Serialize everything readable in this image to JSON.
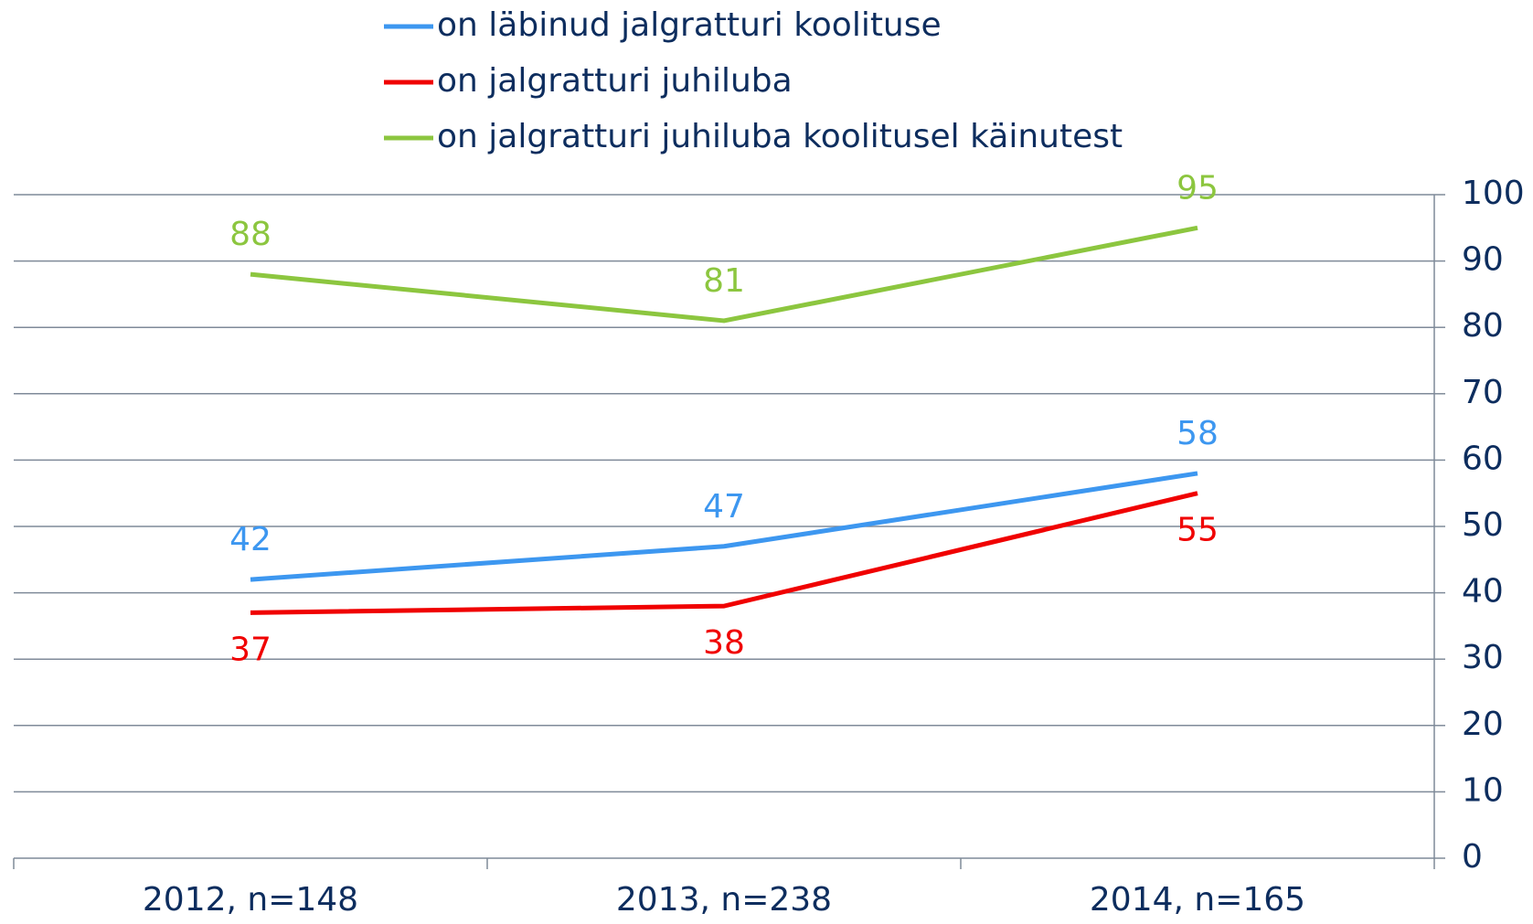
{
  "chart_data": {
    "type": "line",
    "categories": [
      "2012, n=148",
      "2013, n=238",
      "2014, n=165"
    ],
    "series": [
      {
        "name": "on läbinud jalgratturi koolituse",
        "color": "#3d97f0",
        "values": [
          42,
          47,
          58
        ],
        "label_position": "above"
      },
      {
        "name": "on jalgratturi juhiluba",
        "color": "#f00000",
        "values": [
          37,
          38,
          55
        ],
        "label_position": "below"
      },
      {
        "name": "on jalgratturi juhiluba koolitusel käinutest",
        "color": "#8cc63f",
        "values": [
          88,
          81,
          95
        ],
        "label_position": "above"
      }
    ],
    "ylim": [
      0,
      100
    ],
    "yticks": [
      0,
      10,
      20,
      30,
      40,
      50,
      60,
      70,
      80,
      90,
      100
    ],
    "grid": true,
    "y_axis_side": "right",
    "legend": "top"
  }
}
